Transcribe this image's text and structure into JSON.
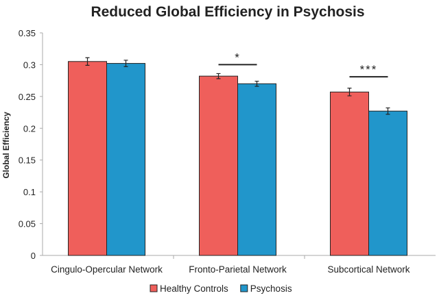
{
  "chart_data": {
    "type": "bar",
    "title": "Reduced Global Efficiency in Psychosis",
    "xlabel": "",
    "ylabel": "Global Efficiency",
    "ylim": [
      0,
      0.35
    ],
    "yticks": [
      "0",
      "0.05",
      "0.1",
      "0.15",
      "0.2",
      "0.25",
      "0.3",
      "0.35"
    ],
    "grid": false,
    "legend_position": "bottom",
    "categories": [
      "Cingulo-Opercular Network",
      "Fronto-Parietal Network",
      "Subcortical Network"
    ],
    "series": [
      {
        "name": "Healthy Controls",
        "color": "#EF5F5B",
        "values": [
          0.305,
          0.282,
          0.257
        ],
        "errors": [
          0.006,
          0.004,
          0.006
        ]
      },
      {
        "name": "Psychosis",
        "color": "#2196CB",
        "values": [
          0.302,
          0.27,
          0.227
        ],
        "errors": [
          0.005,
          0.004,
          0.005
        ]
      }
    ],
    "annotations": [
      {
        "category_index": 1,
        "label": "*",
        "y": 0.3
      },
      {
        "category_index": 2,
        "label": "***",
        "y": 0.281
      }
    ]
  }
}
